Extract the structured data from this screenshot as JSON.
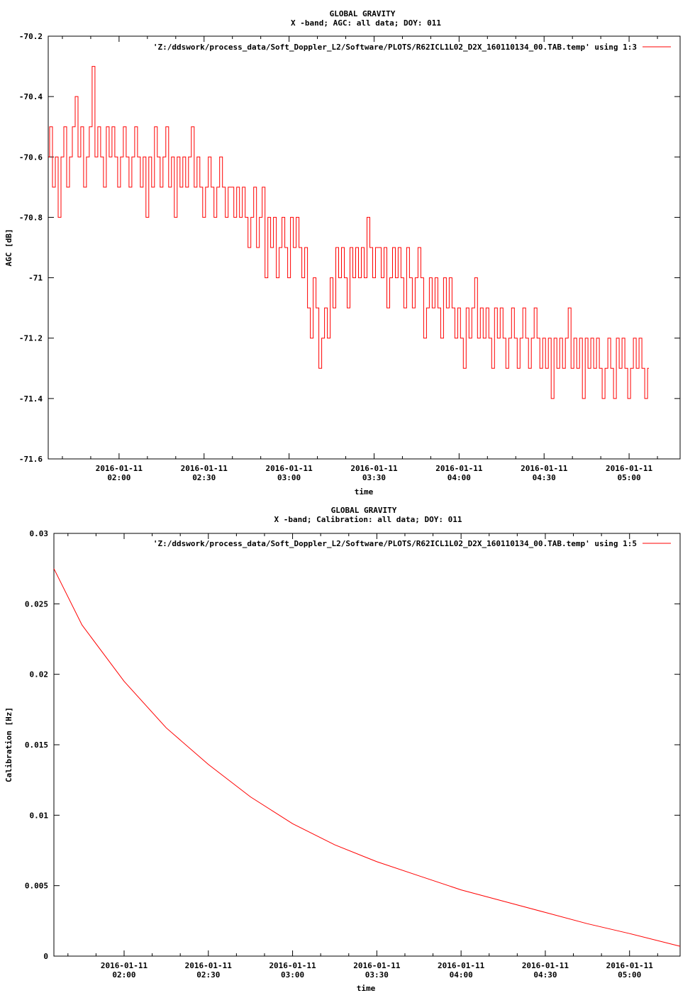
{
  "chart_data": [
    {
      "type": "line",
      "title": "GLOBAL GRAVITY",
      "subtitle": "X -band; AGC: all data; DOY: 011",
      "xlabel": "time",
      "ylabel": "AGC [dB]",
      "xlim": [
        "2016-01-11 01:35",
        "2016-01-11 05:18"
      ],
      "ylim": [
        -71.6,
        -70.2
      ],
      "yticks": [
        -71.6,
        -71.4,
        -71.2,
        -71,
        -70.8,
        -70.6,
        -70.4,
        -70.2
      ],
      "ytick_labels": [
        "-71.6",
        "-71.4",
        "-71.2",
        "-71",
        "-70.8",
        "-70.6",
        "-70.4",
        "-70.2"
      ],
      "xticks": [
        "2016-01-11 02:00",
        "2016-01-11 02:30",
        "2016-01-11 03:00",
        "2016-01-11 03:30",
        "2016-01-11 04:00",
        "2016-01-11 04:30",
        "2016-01-11 05:00"
      ],
      "xtick_dates": [
        "2016-01-11",
        "2016-01-11",
        "2016-01-11",
        "2016-01-11",
        "2016-01-11",
        "2016-01-11",
        "2016-01-11"
      ],
      "xtick_times": [
        "02:00",
        "02:30",
        "03:00",
        "03:30",
        "04:00",
        "04:30",
        "05:00"
      ],
      "grid": false,
      "legend_position": "top-right",
      "series": [
        {
          "name": "'Z:/ddswork/process_data/Soft_Doppler_L2/Software/PLOTS/R62ICL1L02_D2X_160110134_00.TAB.temp' using 1:3",
          "color": "#ff0000",
          "sample_interval_minutes": 1,
          "x_start": "2016-01-11 01:35",
          "y": [
            -70.6,
            -70.5,
            -70.7,
            -70.6,
            -70.8,
            -70.6,
            -70.5,
            -70.7,
            -70.6,
            -70.5,
            -70.4,
            -70.6,
            -70.5,
            -70.7,
            -70.6,
            -70.5,
            -70.3,
            -70.6,
            -70.5,
            -70.6,
            -70.7,
            -70.5,
            -70.6,
            -70.5,
            -70.6,
            -70.7,
            -70.6,
            -70.5,
            -70.6,
            -70.7,
            -70.6,
            -70.5,
            -70.6,
            -70.7,
            -70.6,
            -70.8,
            -70.6,
            -70.7,
            -70.5,
            -70.6,
            -70.7,
            -70.6,
            -70.5,
            -70.7,
            -70.6,
            -70.8,
            -70.6,
            -70.7,
            -70.6,
            -70.7,
            -70.6,
            -70.5,
            -70.7,
            -70.6,
            -70.7,
            -70.8,
            -70.7,
            -70.6,
            -70.7,
            -70.8,
            -70.7,
            -70.6,
            -70.7,
            -70.8,
            -70.7,
            -70.7,
            -70.8,
            -70.7,
            -70.8,
            -70.7,
            -70.8,
            -70.9,
            -70.8,
            -70.7,
            -70.9,
            -70.8,
            -70.7,
            -71.0,
            -70.8,
            -70.9,
            -70.8,
            -71.0,
            -70.9,
            -70.8,
            -70.9,
            -71.0,
            -70.8,
            -70.9,
            -70.8,
            -70.9,
            -71.0,
            -70.9,
            -71.1,
            -71.2,
            -71.0,
            -71.1,
            -71.3,
            -71.2,
            -71.1,
            -71.2,
            -71.0,
            -71.1,
            -70.9,
            -71.0,
            -70.9,
            -71.0,
            -71.1,
            -70.9,
            -71.0,
            -70.9,
            -71.0,
            -70.9,
            -71.0,
            -70.8,
            -70.9,
            -71.0,
            -70.9,
            -70.9,
            -71.0,
            -70.9,
            -71.1,
            -71.0,
            -70.9,
            -71.0,
            -70.9,
            -71.0,
            -71.1,
            -70.9,
            -71.0,
            -71.1,
            -71.0,
            -70.9,
            -71.0,
            -71.2,
            -71.1,
            -71.0,
            -71.1,
            -71.0,
            -71.1,
            -71.2,
            -71.0,
            -71.1,
            -71.0,
            -71.1,
            -71.2,
            -71.1,
            -71.2,
            -71.3,
            -71.1,
            -71.2,
            -71.1,
            -71.0,
            -71.2,
            -71.1,
            -71.2,
            -71.1,
            -71.2,
            -71.3,
            -71.1,
            -71.2,
            -71.1,
            -71.2,
            -71.3,
            -71.2,
            -71.1,
            -71.2,
            -71.3,
            -71.2,
            -71.1,
            -71.2,
            -71.3,
            -71.2,
            -71.1,
            -71.2,
            -71.3,
            -71.2,
            -71.3,
            -71.2,
            -71.4,
            -71.2,
            -71.3,
            -71.2,
            -71.3,
            -71.2,
            -71.1,
            -71.3,
            -71.2,
            -71.3,
            -71.2,
            -71.4,
            -71.2,
            -71.3,
            -71.2,
            -71.3,
            -71.2,
            -71.3,
            -71.4,
            -71.3,
            -71.2,
            -71.3,
            -71.4,
            -71.2,
            -71.3,
            -71.2,
            -71.3,
            -71.4,
            -71.3,
            -71.2,
            -71.3,
            -71.2,
            -71.3,
            -71.4,
            -71.3
          ]
        }
      ]
    },
    {
      "type": "line",
      "title": "GLOBAL GRAVITY",
      "subtitle": "X -band; Calibration: all data; DOY: 011",
      "xlabel": "time",
      "ylabel": "Calibration [Hz]",
      "xlim": [
        "2016-01-11 01:35",
        "2016-01-11 05:18"
      ],
      "ylim": [
        0,
        0.03
      ],
      "yticks": [
        0,
        0.005,
        0.01,
        0.015,
        0.02,
        0.025,
        0.03
      ],
      "ytick_labels": [
        "0",
        "0.005",
        "0.01",
        "0.015",
        "0.02",
        "0.025",
        "0.03"
      ],
      "xticks": [
        "2016-01-11 02:00",
        "2016-01-11 02:30",
        "2016-01-11 03:00",
        "2016-01-11 03:30",
        "2016-01-11 04:00",
        "2016-01-11 04:30",
        "2016-01-11 05:00"
      ],
      "xtick_dates": [
        "2016-01-11",
        "2016-01-11",
        "2016-01-11",
        "2016-01-11",
        "2016-01-11",
        "2016-01-11",
        "2016-01-11"
      ],
      "xtick_times": [
        "02:00",
        "02:30",
        "03:00",
        "03:30",
        "04:00",
        "04:30",
        "05:00"
      ],
      "grid": false,
      "legend_position": "top-right",
      "series": [
        {
          "name": "'Z:/ddswork/process_data/Soft_Doppler_L2/Software/PLOTS/R62ICL1L02_D2X_160110134_00.TAB.temp' using 1:5",
          "color": "#ff0000",
          "x": [
            "2016-01-11 01:35",
            "2016-01-11 01:45",
            "2016-01-11 02:00",
            "2016-01-11 02:15",
            "2016-01-11 02:30",
            "2016-01-11 02:45",
            "2016-01-11 03:00",
            "2016-01-11 03:15",
            "2016-01-11 03:30",
            "2016-01-11 03:45",
            "2016-01-11 04:00",
            "2016-01-11 04:15",
            "2016-01-11 04:30",
            "2016-01-11 04:45",
            "2016-01-11 05:00",
            "2016-01-11 05:18"
          ],
          "y": [
            0.0275,
            0.0235,
            0.0195,
            0.0162,
            0.0136,
            0.0113,
            0.0094,
            0.0079,
            0.0067,
            0.0057,
            0.0047,
            0.0039,
            0.0031,
            0.0023,
            0.0016,
            0.0007
          ]
        }
      ]
    }
  ]
}
